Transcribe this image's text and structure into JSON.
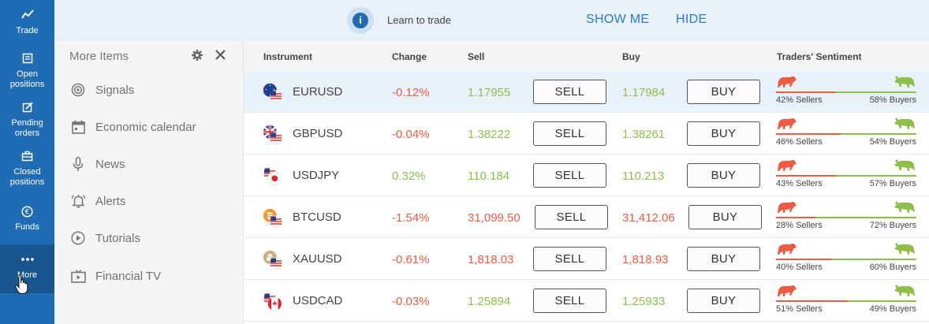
{
  "nav": {
    "items": [
      {
        "label": "Trade",
        "icon": "trade-chart-icon"
      },
      {
        "label": "Open positions",
        "icon": "open-positions-icon"
      },
      {
        "label": "Pending orders",
        "icon": "pending-orders-icon"
      },
      {
        "label": "Closed positions",
        "icon": "closed-positions-icon"
      },
      {
        "label": "Funds",
        "icon": "funds-icon"
      },
      {
        "label": "More",
        "icon": "more-dots-icon"
      }
    ]
  },
  "banner": {
    "info_glyph": "i",
    "text": "Learn to trade",
    "show_me": "SHOW ME",
    "hide": "HIDE"
  },
  "panel": {
    "title": "More Items",
    "items": [
      {
        "label": "Signals",
        "icon": "signals-icon"
      },
      {
        "label": "Economic calendar",
        "icon": "calendar-icon"
      },
      {
        "label": "News",
        "icon": "microphone-icon"
      },
      {
        "label": "Alerts",
        "icon": "bell-icon"
      },
      {
        "label": "Tutorials",
        "icon": "play-icon"
      },
      {
        "label": "Financial TV",
        "icon": "tv-icon"
      }
    ]
  },
  "table": {
    "headers": {
      "instrument": "Instrument",
      "change": "Change",
      "sell": "Sell",
      "buy": "Buy",
      "sentiment": "Traders' Sentiment"
    },
    "sell_label": "SELL",
    "buy_label": "BUY",
    "colors": {
      "negative": "#ef5a42",
      "positive": "#8dbf4a"
    },
    "rows": [
      {
        "instrument": "EURUSD",
        "change": "-0.12%",
        "change_dir": "neg",
        "sell": "1.17955",
        "buy": "1.17984",
        "price_dir": "pos",
        "sellers_pct": 42,
        "buyers_pct": 58,
        "sellers_text": "42% Sellers",
        "buyers_text": "58% Buyers",
        "selected": true,
        "flag": "eu-us"
      },
      {
        "instrument": "GBPUSD",
        "change": "-0.04%",
        "change_dir": "neg",
        "sell": "1.38222",
        "buy": "1.38261",
        "price_dir": "pos",
        "sellers_pct": 46,
        "buyers_pct": 54,
        "sellers_text": "46% Sellers",
        "buyers_text": "54% Buyers",
        "selected": false,
        "flag": "gb-us"
      },
      {
        "instrument": "USDJPY",
        "change": "0.32%",
        "change_dir": "pos",
        "sell": "110.184",
        "buy": "110.213",
        "price_dir": "pos",
        "sellers_pct": 43,
        "buyers_pct": 57,
        "sellers_text": "43% Sellers",
        "buyers_text": "57% Buyers",
        "selected": false,
        "flag": "us-jp"
      },
      {
        "instrument": "BTCUSD",
        "change": "-1.54%",
        "change_dir": "neg",
        "sell": "31,099.50",
        "buy": "31,412.06",
        "price_dir": "neg",
        "sellers_pct": 28,
        "buyers_pct": 72,
        "sellers_text": "28% Sellers",
        "buyers_text": "72% Buyers",
        "selected": false,
        "flag": "btc-us"
      },
      {
        "instrument": "XAUUSD",
        "change": "-0.61%",
        "change_dir": "neg",
        "sell": "1,818.03",
        "buy": "1,818.93",
        "price_dir": "neg",
        "sellers_pct": 40,
        "buyers_pct": 60,
        "sellers_text": "40% Sellers",
        "buyers_text": "60% Buyers",
        "selected": false,
        "flag": "gold"
      },
      {
        "instrument": "USDCAD",
        "change": "-0.03%",
        "change_dir": "neg",
        "sell": "1.25894",
        "buy": "1.25933",
        "price_dir": "pos",
        "sellers_pct": 51,
        "buyers_pct": 49,
        "sellers_text": "51% Sellers",
        "buyers_text": "49% Buyers",
        "selected": false,
        "flag": "us-ca"
      }
    ]
  }
}
